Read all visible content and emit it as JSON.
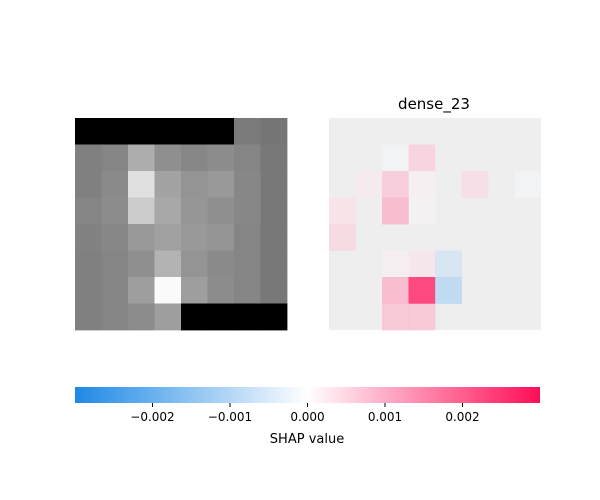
{
  "chart_data": {
    "type": "heatmap",
    "title": "dense_23",
    "panels": [
      {
        "name": "input-image",
        "kind": "grayscale-image",
        "rows": 8,
        "cols": 8,
        "grayscale": [
          [
            0.0,
            0.0,
            0.0,
            0.0,
            0.0,
            0.0,
            0.48,
            0.46
          ],
          [
            0.5,
            0.52,
            0.68,
            0.56,
            0.53,
            0.55,
            0.52,
            0.47
          ],
          [
            0.5,
            0.54,
            0.88,
            0.64,
            0.58,
            0.6,
            0.53,
            0.47
          ],
          [
            0.52,
            0.55,
            0.8,
            0.66,
            0.59,
            0.56,
            0.53,
            0.47
          ],
          [
            0.51,
            0.53,
            0.6,
            0.63,
            0.6,
            0.58,
            0.52,
            0.47
          ],
          [
            0.5,
            0.52,
            0.56,
            0.7,
            0.58,
            0.54,
            0.52,
            0.47
          ],
          [
            0.5,
            0.52,
            0.62,
            0.98,
            0.62,
            0.55,
            0.52,
            0.47
          ],
          [
            0.5,
            0.52,
            0.55,
            0.62,
            0.0,
            0.0,
            0.0,
            0.0
          ]
        ]
      },
      {
        "name": "shap-values",
        "kind": "shap-heatmap",
        "title": "dense_23",
        "rows": 8,
        "cols": 8,
        "values": [
          [
            0.0,
            0.0,
            0.0,
            0.0,
            0.0,
            0.0,
            0.0,
            0.0
          ],
          [
            0.0,
            0.0,
            -0.0001,
            0.0008,
            0.0,
            0.0,
            0.0,
            0.0
          ],
          [
            0.0,
            0.0003,
            0.0009,
            0.0002,
            0.0,
            0.0006,
            0.0,
            -0.0001
          ],
          [
            0.0005,
            0.0,
            0.0012,
            0.0001,
            0.0,
            0.0,
            0.0,
            0.0
          ],
          [
            0.0007,
            0.0,
            0.0,
            0.0,
            0.0,
            0.0,
            0.0,
            0.0
          ],
          [
            0.0,
            0.0,
            0.0002,
            0.0004,
            -0.0008,
            0.0,
            0.0,
            0.0
          ],
          [
            0.0,
            0.0,
            0.0012,
            0.0025,
            -0.0012,
            0.0,
            0.0,
            0.0
          ],
          [
            0.0,
            0.0,
            0.001,
            0.001,
            0.0,
            0.0,
            0.0,
            0.0
          ]
        ]
      }
    ],
    "colorbar": {
      "range": [
        -0.003,
        0.003
      ],
      "ticks": [
        -0.002,
        -0.001,
        0.0,
        0.001,
        0.002
      ],
      "tick_labels": [
        "−0.002",
        "−0.001",
        "0.000",
        "0.001",
        "0.002"
      ],
      "label": "SHAP value",
      "colors": {
        "negative": "#1e88e5",
        "neutral": "#ffffff",
        "positive": "#ff0d57"
      }
    },
    "grid": false,
    "legend_placement": "bottom"
  }
}
